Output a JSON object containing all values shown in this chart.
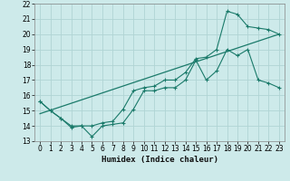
{
  "xlabel": "Humidex (Indice chaleur)",
  "xlim": [
    -0.5,
    23.5
  ],
  "ylim": [
    13,
    22
  ],
  "xticks": [
    0,
    1,
    2,
    3,
    4,
    5,
    6,
    7,
    8,
    9,
    10,
    11,
    12,
    13,
    14,
    15,
    16,
    17,
    18,
    19,
    20,
    21,
    22,
    23
  ],
  "yticks": [
    13,
    14,
    15,
    16,
    17,
    18,
    19,
    20,
    21,
    22
  ],
  "bg_color": "#cdeaea",
  "line_color": "#1a7a6a",
  "grid_color": "#b0d4d4",
  "line1_x": [
    0,
    1,
    2,
    3,
    4,
    5,
    6,
    7,
    8,
    9,
    10,
    11,
    12,
    13,
    14,
    15,
    16,
    17,
    18,
    19,
    20,
    21,
    22,
    23
  ],
  "line1_y": [
    15.6,
    15.0,
    14.5,
    13.9,
    14.0,
    13.3,
    14.0,
    14.1,
    14.2,
    15.1,
    16.3,
    16.3,
    16.5,
    16.5,
    17.0,
    18.3,
    17.0,
    17.6,
    19.0,
    18.6,
    19.0,
    17.0,
    16.8,
    16.5
  ],
  "line2_x": [
    0,
    1,
    2,
    3,
    4,
    5,
    6,
    7,
    8,
    9,
    10,
    11,
    12,
    13,
    14,
    15,
    16,
    17,
    18,
    19,
    20,
    21,
    22,
    23
  ],
  "line2_y": [
    15.6,
    15.0,
    14.5,
    14.0,
    14.0,
    14.0,
    14.2,
    14.3,
    15.1,
    16.3,
    16.5,
    16.6,
    17.0,
    17.0,
    17.5,
    18.4,
    18.5,
    19.0,
    21.5,
    21.3,
    20.5,
    20.4,
    20.3,
    20.0
  ],
  "line3_x": [
    0,
    23
  ],
  "line3_y": [
    14.8,
    20.0
  ],
  "tick_fontsize": 5.5,
  "xlabel_fontsize": 6.5
}
